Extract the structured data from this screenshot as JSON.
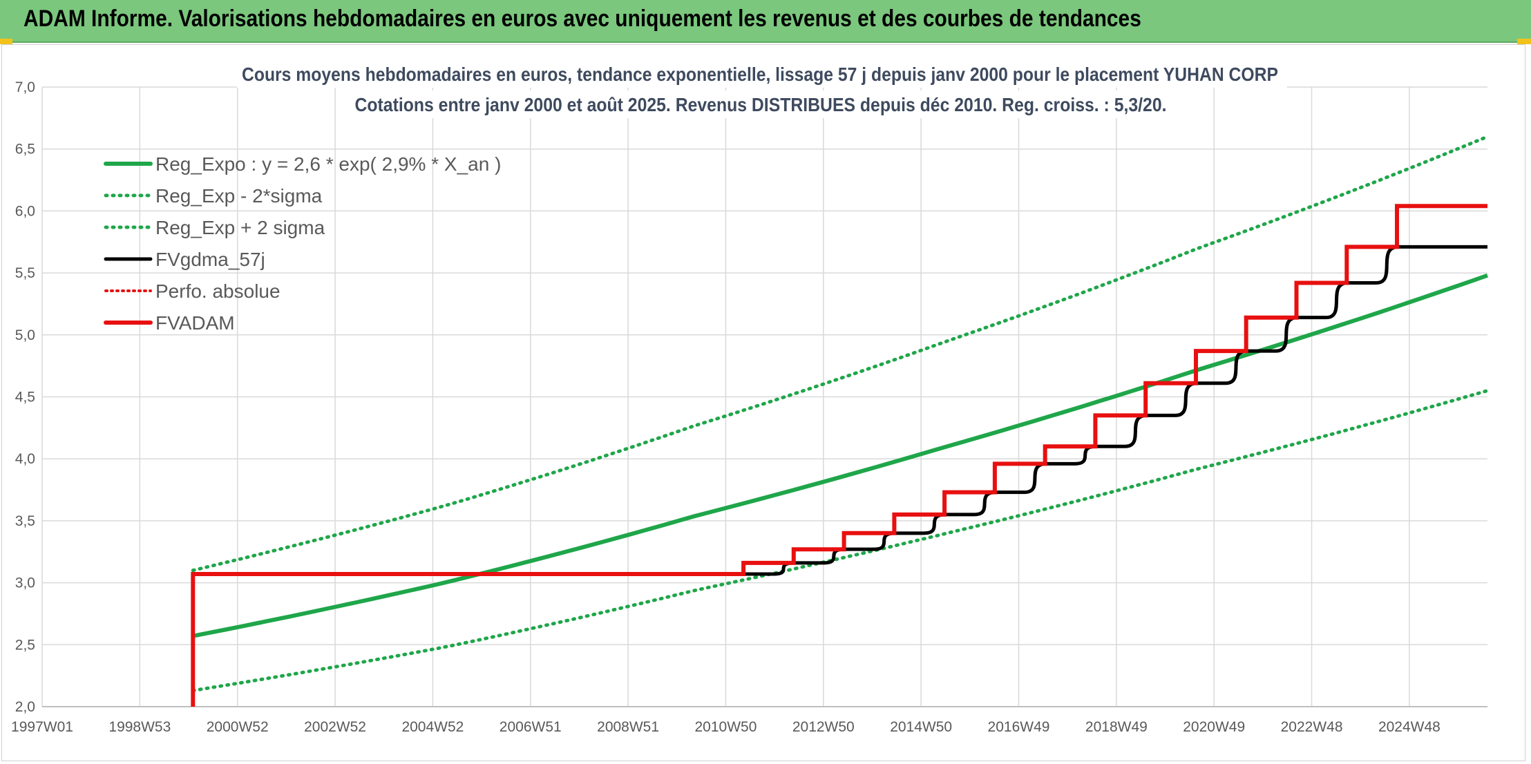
{
  "banner": {
    "title": "ADAM Informe. Valorisations hebdomadaires en euros avec uniquement les revenus et des courbes de tendances"
  },
  "colors": {
    "banner_bg": "#7ac77d",
    "reg": "#1fa64a",
    "fvadam": "#e81010",
    "fvgdma": "#000000",
    "grid": "#d9d9d9"
  },
  "chart_data": {
    "type": "line",
    "title": [
      "Cours moyens hebdomadaires en euros, tendance exponentielle, lissage 57 j depuis janv 2000 pour le placement YUHAN CORP",
      "Cotations entre janv 2000 et août 2025. Revenus DISTRIBUES depuis déc 2010. Reg. croiss. : 5,3/20."
    ],
    "x_tick_labels": [
      "1997W01",
      "1998W53",
      "2000W52",
      "2002W52",
      "2004W52",
      "2006W51",
      "2008W51",
      "2010W50",
      "2012W50",
      "2014W50",
      "2016W49",
      "2018W49",
      "2020W49",
      "2022W48",
      "2024W48"
    ],
    "y_tick_labels": [
      "2,0",
      "2,5",
      "3,0",
      "3,5",
      "4,0",
      "4,5",
      "5,0",
      "5,5",
      "6,0",
      "6,5",
      "7,0"
    ],
    "xlim": [
      1997.0,
      2025.75
    ],
    "ylim": [
      2.0,
      7.0
    ],
    "grid": true,
    "legend_position": "top-left",
    "legend": [
      {
        "label": "Reg_Expo : y = 2,6 * exp( 2,9% *  X_an )",
        "style": "solid-green"
      },
      {
        "label": "Reg_Exp - 2*sigma",
        "style": "dotted-green"
      },
      {
        "label": "Reg_Exp + 2 sigma",
        "style": "dotted-green"
      },
      {
        "label": "FVgdma_57j",
        "style": "solid-black"
      },
      {
        "label": "Perfo. absolue",
        "style": "dotted-red"
      },
      {
        "label": "FVADAM",
        "style": "solid-red"
      }
    ],
    "series": [
      {
        "name": "Reg_Expo : y = 2,6 * exp( 2,9% *  X_an )",
        "x": [
          2000.0,
          2005.0,
          2010.0,
          2015.0,
          2020.0,
          2025.75
        ],
        "y": [
          2.57,
          3.0,
          3.54,
          4.1,
          4.72,
          5.48
        ]
      },
      {
        "name": "Reg_Exp + 2 sigma",
        "x": [
          2000.0,
          2005.0,
          2010.0,
          2015.0,
          2020.0,
          2025.75
        ],
        "y": [
          3.1,
          3.62,
          4.27,
          4.95,
          5.7,
          6.6
        ]
      },
      {
        "name": "Reg_Exp - 2*sigma",
        "x": [
          2000.0,
          2005.0,
          2010.0,
          2015.0,
          2020.0,
          2025.75
        ],
        "y": [
          2.13,
          2.48,
          2.94,
          3.4,
          3.92,
          4.55
        ]
      },
      {
        "name": "FVADAM",
        "x": [
          2000.0,
          2000.0,
          2010.95,
          2010.95,
          2011.95,
          2011.95,
          2012.95,
          2012.95,
          2013.95,
          2013.95,
          2014.95,
          2014.95,
          2015.95,
          2015.95,
          2016.95,
          2016.95,
          2017.95,
          2017.95,
          2018.95,
          2018.95,
          2019.95,
          2019.95,
          2020.95,
          2020.95,
          2021.95,
          2021.95,
          2022.95,
          2022.95,
          2023.95,
          2023.95,
          2025.75
        ],
        "y": [
          2.0,
          3.07,
          3.07,
          3.16,
          3.16,
          3.27,
          3.27,
          3.4,
          3.4,
          3.55,
          3.55,
          3.73,
          3.73,
          3.96,
          3.96,
          4.1,
          4.1,
          4.35,
          4.35,
          4.61,
          4.61,
          4.87,
          4.87,
          5.14,
          5.14,
          5.42,
          5.42,
          5.71,
          5.71,
          6.04,
          6.04
        ]
      },
      {
        "name": "FVgdma_57j",
        "x": [
          2010.95,
          2011.95,
          2012.95,
          2013.95,
          2014.95,
          2015.95,
          2016.95,
          2017.95,
          2018.95,
          2019.95,
          2020.95,
          2021.95,
          2022.95,
          2023.95,
          2025.75
        ],
        "y": [
          3.07,
          3.16,
          3.27,
          3.4,
          3.55,
          3.73,
          3.96,
          4.1,
          4.35,
          4.61,
          4.87,
          5.14,
          5.42,
          5.71,
          6.04
        ]
      }
    ]
  }
}
